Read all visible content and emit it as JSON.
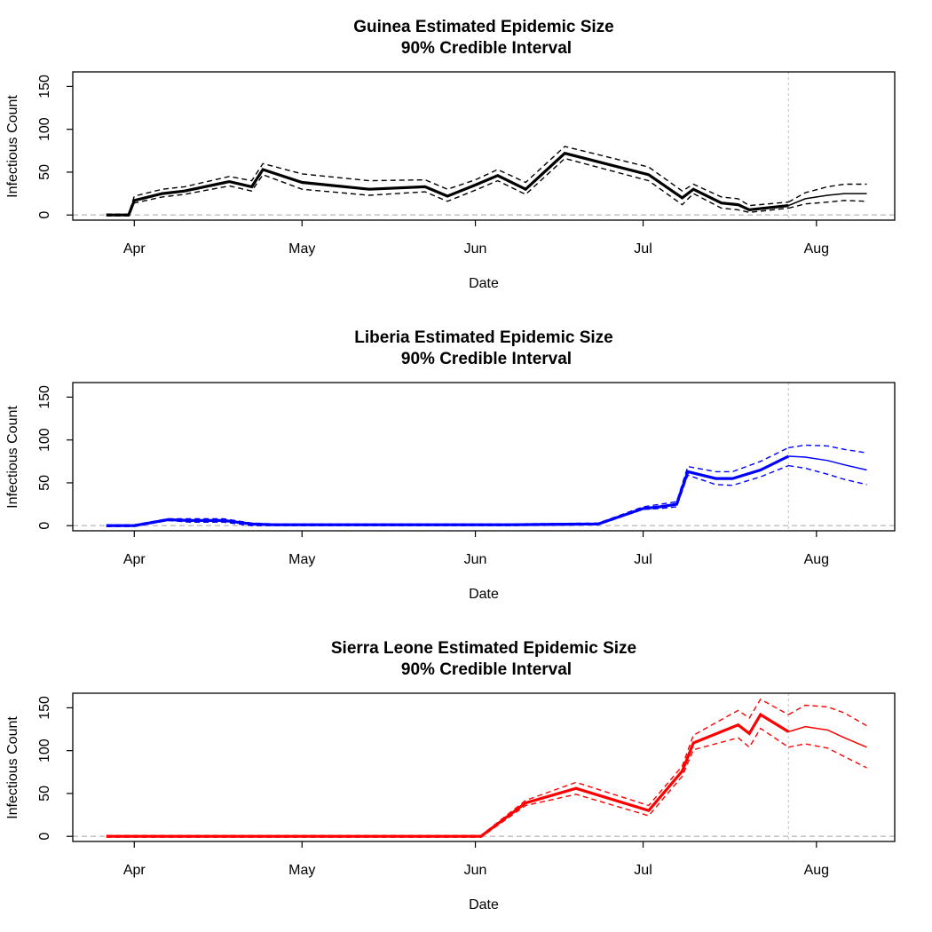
{
  "chart_data": [
    {
      "type": "line",
      "title_line1": "Guinea Estimated Epidemic Size",
      "title_line2": "90% Credible Interval",
      "xlabel": "Date",
      "ylabel": "Infectious Count",
      "color": "#000000",
      "xlim": [
        "2014-03-21",
        "2014-08-15"
      ],
      "ylim": [
        -6,
        167
      ],
      "y_ticks": [
        0,
        50,
        100,
        150
      ],
      "x_ticks": [
        {
          "label": "Apr",
          "date": "2014-04-01"
        },
        {
          "label": "May",
          "date": "2014-05-01"
        },
        {
          "label": "Jun",
          "date": "2014-06-01"
        },
        {
          "label": "Jul",
          "date": "2014-07-01"
        },
        {
          "label": "Aug",
          "date": "2014-08-01"
        }
      ],
      "zero_line": true,
      "forecast_start": "2014-07-27",
      "estimate": {
        "x": [
          "2014-03-27",
          "2014-03-31",
          "2014-04-01",
          "2014-04-06",
          "2014-04-10",
          "2014-04-18",
          "2014-04-22",
          "2014-04-24",
          "2014-05-01",
          "2014-05-13",
          "2014-05-23",
          "2014-05-27",
          "2014-06-01",
          "2014-06-05",
          "2014-06-10",
          "2014-06-17",
          "2014-07-02",
          "2014-07-08",
          "2014-07-10",
          "2014-07-15",
          "2014-07-18",
          "2014-07-20",
          "2014-07-27"
        ],
        "y": [
          0,
          0,
          17,
          25,
          28,
          39,
          33,
          53,
          38,
          30,
          33,
          22,
          35,
          46,
          30,
          72,
          47,
          20,
          30,
          14,
          12,
          6,
          11
        ]
      },
      "upper": {
        "x": [
          "2014-03-27",
          "2014-03-31",
          "2014-04-01",
          "2014-04-06",
          "2014-04-10",
          "2014-04-18",
          "2014-04-22",
          "2014-04-24",
          "2014-05-01",
          "2014-05-13",
          "2014-05-23",
          "2014-05-27",
          "2014-06-01",
          "2014-06-05",
          "2014-06-10",
          "2014-06-17",
          "2014-07-02",
          "2014-07-08",
          "2014-07-10",
          "2014-07-15",
          "2014-07-18",
          "2014-07-20",
          "2014-07-27"
        ],
        "y": [
          1,
          1,
          22,
          30,
          33,
          45,
          40,
          60,
          48,
          40,
          41,
          30,
          41,
          53,
          38,
          80,
          56,
          28,
          36,
          21,
          19,
          11,
          15
        ]
      },
      "lower": {
        "x": [
          "2014-03-27",
          "2014-03-31",
          "2014-04-01",
          "2014-04-06",
          "2014-04-10",
          "2014-04-18",
          "2014-04-22",
          "2014-04-24",
          "2014-05-01",
          "2014-05-13",
          "2014-05-23",
          "2014-05-27",
          "2014-06-01",
          "2014-06-05",
          "2014-06-10",
          "2014-06-17",
          "2014-07-02",
          "2014-07-08",
          "2014-07-10",
          "2014-07-15",
          "2014-07-18",
          "2014-07-20",
          "2014-07-27"
        ],
        "y": [
          -1,
          -1,
          14,
          21,
          24,
          34,
          28,
          47,
          30,
          23,
          27,
          16,
          29,
          40,
          24,
          66,
          40,
          12,
          25,
          8,
          6,
          3,
          8
        ]
      },
      "forecast": {
        "x": [
          "2014-07-27",
          "2014-07-30",
          "2014-08-03",
          "2014-08-06",
          "2014-08-10"
        ],
        "y": [
          11,
          19,
          23,
          25,
          25
        ],
        "upper": [
          15,
          26,
          33,
          36,
          36
        ],
        "lower": [
          8,
          13,
          15,
          17,
          16
        ]
      }
    },
    {
      "type": "line",
      "title_line1": "Liberia Estimated Epidemic Size",
      "title_line2": "90% Credible Interval",
      "xlabel": "Date",
      "ylabel": "Infectious Count",
      "color": "#0000ff",
      "xlim": [
        "2014-03-21",
        "2014-08-15"
      ],
      "ylim": [
        -6,
        167
      ],
      "y_ticks": [
        0,
        50,
        100,
        150
      ],
      "x_ticks": [
        {
          "label": "Apr",
          "date": "2014-04-01"
        },
        {
          "label": "May",
          "date": "2014-05-01"
        },
        {
          "label": "Jun",
          "date": "2014-06-01"
        },
        {
          "label": "Jul",
          "date": "2014-07-01"
        },
        {
          "label": "Aug",
          "date": "2014-08-01"
        }
      ],
      "zero_line": true,
      "forecast_start": "2014-07-27",
      "estimate": {
        "x": [
          "2014-03-27",
          "2014-04-01",
          "2014-04-07",
          "2014-04-11",
          "2014-04-17",
          "2014-04-22",
          "2014-04-26",
          "2014-06-07",
          "2014-06-23",
          "2014-07-01",
          "2014-07-04",
          "2014-07-07",
          "2014-07-09",
          "2014-07-14",
          "2014-07-17",
          "2014-07-22",
          "2014-07-27"
        ],
        "y": [
          0,
          0,
          7,
          6,
          6,
          2,
          1,
          1,
          2,
          20,
          22,
          25,
          63,
          55,
          55,
          65,
          81
        ]
      },
      "upper": {
        "x": [
          "2014-03-27",
          "2014-04-01",
          "2014-04-07",
          "2014-04-11",
          "2014-04-17",
          "2014-04-22",
          "2014-04-26",
          "2014-06-07",
          "2014-06-23",
          "2014-07-01",
          "2014-07-04",
          "2014-07-07",
          "2014-07-09",
          "2014-07-14",
          "2014-07-17",
          "2014-07-22",
          "2014-07-27"
        ],
        "y": [
          1,
          1,
          8,
          8,
          8,
          3,
          2,
          2,
          3,
          22,
          25,
          28,
          69,
          63,
          63,
          75,
          91
        ]
      },
      "lower": {
        "x": [
          "2014-03-27",
          "2014-04-01",
          "2014-04-07",
          "2014-04-11",
          "2014-04-17",
          "2014-04-22",
          "2014-04-26",
          "2014-06-07",
          "2014-06-23",
          "2014-07-01",
          "2014-07-04",
          "2014-07-07",
          "2014-07-09",
          "2014-07-14",
          "2014-07-17",
          "2014-07-22",
          "2014-07-27"
        ],
        "y": [
          -1,
          -1,
          6,
          4,
          4,
          0,
          0,
          0,
          1,
          19,
          20,
          22,
          59,
          48,
          47,
          57,
          70
        ]
      },
      "forecast": {
        "x": [
          "2014-07-27",
          "2014-07-30",
          "2014-08-03",
          "2014-08-06",
          "2014-08-10"
        ],
        "y": [
          81,
          80,
          76,
          71,
          65
        ],
        "upper": [
          91,
          94,
          93,
          89,
          85
        ],
        "lower": [
          70,
          67,
          60,
          54,
          48
        ]
      }
    },
    {
      "type": "line",
      "title_line1": "Sierra Leone Estimated Epidemic Size",
      "title_line2": "90% Credible Interval",
      "xlabel": "Date",
      "ylabel": "Infectious Count",
      "color": "#ff0000",
      "xlim": [
        "2014-03-21",
        "2014-08-15"
      ],
      "ylim": [
        -6,
        167
      ],
      "y_ticks": [
        0,
        50,
        100,
        150
      ],
      "x_ticks": [
        {
          "label": "Apr",
          "date": "2014-04-01"
        },
        {
          "label": "May",
          "date": "2014-05-01"
        },
        {
          "label": "Jun",
          "date": "2014-06-01"
        },
        {
          "label": "Jul",
          "date": "2014-07-01"
        },
        {
          "label": "Aug",
          "date": "2014-08-01"
        }
      ],
      "zero_line": true,
      "forecast_start": "2014-07-27",
      "estimate": {
        "x": [
          "2014-03-27",
          "2014-06-02",
          "2014-06-10",
          "2014-06-19",
          "2014-07-02",
          "2014-07-08",
          "2014-07-10",
          "2014-07-18",
          "2014-07-20",
          "2014-07-22",
          "2014-07-27"
        ],
        "y": [
          0,
          0,
          39,
          56,
          30,
          76,
          109,
          130,
          120,
          142,
          122
        ]
      },
      "upper": {
        "x": [
          "2014-03-27",
          "2014-06-02",
          "2014-06-10",
          "2014-06-19",
          "2014-07-02",
          "2014-07-08",
          "2014-07-10",
          "2014-07-18",
          "2014-07-20",
          "2014-07-22",
          "2014-07-27"
        ],
        "y": [
          1,
          1,
          42,
          63,
          36,
          82,
          118,
          147,
          138,
          160,
          142
        ]
      },
      "lower": {
        "x": [
          "2014-03-27",
          "2014-06-02",
          "2014-06-10",
          "2014-06-19",
          "2014-07-02",
          "2014-07-08",
          "2014-07-10",
          "2014-07-18",
          "2014-07-20",
          "2014-07-22",
          "2014-07-27"
        ],
        "y": [
          -1,
          -1,
          36,
          49,
          24,
          70,
          101,
          115,
          104,
          126,
          104
        ]
      },
      "forecast": {
        "x": [
          "2014-07-27",
          "2014-07-30",
          "2014-08-03",
          "2014-08-06",
          "2014-08-10"
        ],
        "y": [
          122,
          128,
          124,
          115,
          104
        ],
        "upper": [
          142,
          153,
          151,
          144,
          129
        ],
        "lower": [
          104,
          108,
          103,
          93,
          80
        ]
      }
    }
  ]
}
